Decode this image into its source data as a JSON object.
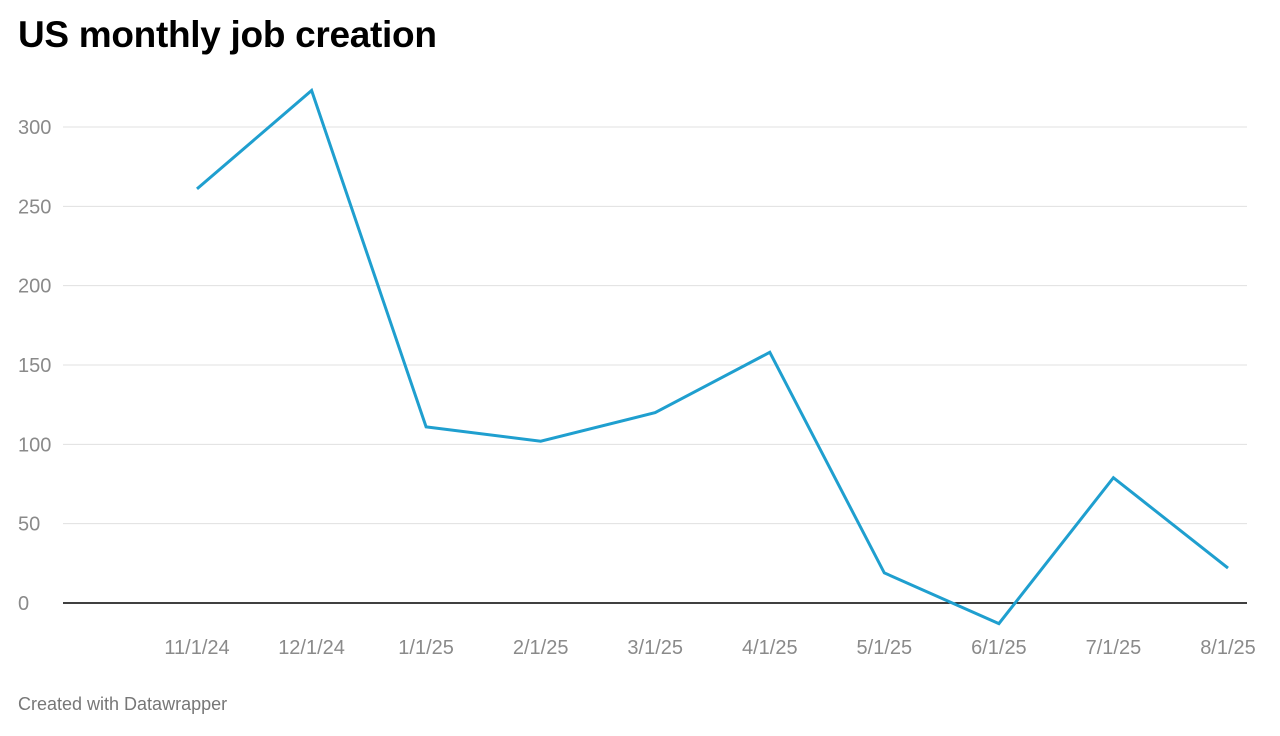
{
  "chart_data": {
    "type": "line",
    "title": "US monthly job creation",
    "xlabel": "",
    "ylabel": "",
    "x": [
      "11/1/24",
      "12/1/24",
      "1/1/25",
      "2/1/25",
      "3/1/25",
      "4/1/25",
      "5/1/25",
      "6/1/25",
      "7/1/25",
      "8/1/25"
    ],
    "series": [
      {
        "values": [
          261,
          323,
          111,
          102,
          120,
          158,
          19,
          -13,
          79,
          22
        ]
      }
    ],
    "yticks": [
      "0",
      "50",
      "100",
      "150",
      "200",
      "250",
      "300"
    ],
    "ylim": [
      -15,
      330
    ],
    "grid": true,
    "line_color": "#1f9fcf",
    "gridline_color": "#e0e0e0",
    "zero_line_color": "#000000"
  },
  "footer": {
    "credit": "Created with Datawrapper"
  }
}
